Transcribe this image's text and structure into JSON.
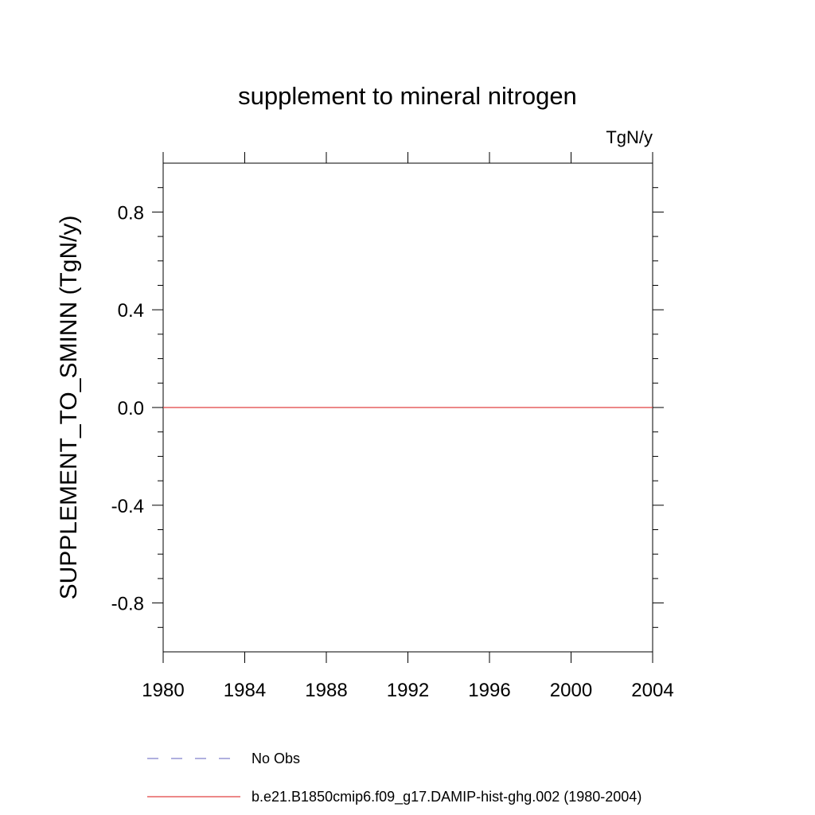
{
  "chart_data": {
    "type": "line",
    "title": "supplement to mineral nitrogen",
    "units_label": "TgN/y",
    "ylabel": "SUPPLEMENT_TO_SMINN  (TgN/y)",
    "xlabel": "",
    "xlim": [
      1980,
      2004
    ],
    "ylim": [
      -1.0,
      1.0
    ],
    "x_ticks": [
      1980,
      1984,
      1988,
      1992,
      1996,
      2000,
      2004
    ],
    "x_tick_labels": [
      "1980",
      "1984",
      "1988",
      "1992",
      "1996",
      "2000",
      "2004"
    ],
    "y_ticks": [
      -0.8,
      -0.4,
      0.0,
      0.4,
      0.8
    ],
    "y_tick_labels": [
      "-0.8",
      "-0.4",
      "0.0",
      "0.4",
      "0.8"
    ],
    "grid": false,
    "legend_position": "bottom",
    "series": [
      {
        "name": "No Obs",
        "color": "#8080cc",
        "style": "dashed",
        "x": [],
        "values": []
      },
      {
        "name": "b.e21.B1850cmip6.f09_g17.DAMIP-hist-ghg.002 (1980-2004)",
        "color": "#e04040",
        "style": "solid",
        "x": [
          1980,
          2004
        ],
        "values": [
          0.0,
          0.0
        ]
      }
    ]
  }
}
